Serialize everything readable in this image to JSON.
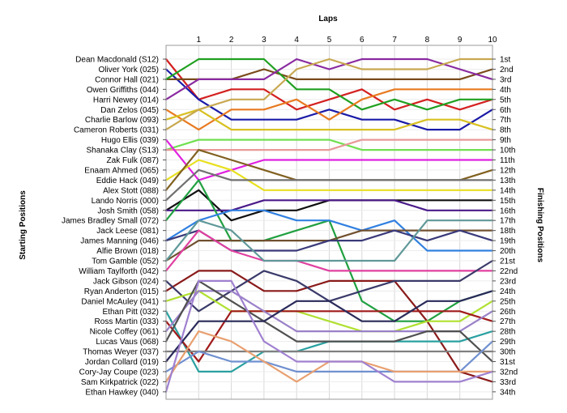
{
  "chart_data": {
    "type": "line",
    "title": "",
    "xlabel": "Laps",
    "ylabel_left": "Starting Positions",
    "ylabel_right": "Finishing Positions",
    "x": [
      0,
      1,
      2,
      3,
      4,
      5,
      6,
      7,
      8,
      9,
      10
    ],
    "x_tick_labels": [
      "1",
      "2",
      "3",
      "4",
      "5",
      "6",
      "7",
      "8",
      "9",
      "10"
    ],
    "y_axis": "position",
    "ylim": [
      1,
      34
    ],
    "grid": true,
    "finishing_labels": [
      "1st",
      "2nd",
      "3rd",
      "4th",
      "5th",
      "6th",
      "7th",
      "8th",
      "9th",
      "10th",
      "11th",
      "12th",
      "13th",
      "14th",
      "15th",
      "16th",
      "17th",
      "18th",
      "19th",
      "20th",
      "21st",
      "22nd",
      "23rd",
      "24th",
      "25th",
      "26th",
      "27th",
      "28th",
      "29th",
      "30th",
      "31st",
      "32nd",
      "33rd",
      "34th"
    ],
    "series": [
      {
        "name": "Dean Macdonald (S12)",
        "color": "#d42020",
        "values": [
          1,
          5,
          4,
          4,
          6,
          5,
          4,
          6,
          5,
          6,
          5
        ]
      },
      {
        "name": "Oliver York (025)",
        "color": "#1a1aa8",
        "values": [
          2,
          5,
          7,
          7,
          7,
          6,
          7,
          7,
          8,
          8,
          6
        ]
      },
      {
        "name": "Connor Hall (021)",
        "color": "#7a4a1a",
        "values": [
          3,
          3,
          3,
          2,
          3,
          3,
          3,
          3,
          3,
          3,
          2
        ]
      },
      {
        "name": "Owen Griffiths (044)",
        "color": "#20a020",
        "values": [
          3,
          1,
          1,
          1,
          4,
          4,
          6,
          5,
          6,
          5,
          5
        ]
      },
      {
        "name": "Harri Newey (014)",
        "color": "#8a2aa0",
        "values": [
          5,
          3,
          3,
          3,
          1,
          2,
          1,
          1,
          1,
          2,
          3
        ]
      },
      {
        "name": "Dan Zelos (045)",
        "color": "#e87a20",
        "values": [
          6,
          8,
          6,
          6,
          5,
          7,
          5,
          4,
          4,
          4,
          4
        ]
      },
      {
        "name": "Charlie Barlow (093)",
        "color": "#d8c020",
        "values": [
          7,
          6,
          8,
          8,
          8,
          8,
          8,
          8,
          7,
          7,
          8
        ]
      },
      {
        "name": "Cameron Roberts (031)",
        "color": "#c8a850",
        "values": [
          8,
          6,
          5,
          5,
          2,
          1,
          2,
          2,
          2,
          1,
          1
        ]
      },
      {
        "name": "Hugo Ellis (039)",
        "color": "#70e050",
        "values": [
          10,
          9,
          9,
          9,
          9,
          9,
          10,
          10,
          10,
          10,
          10
        ]
      },
      {
        "name": "Shanaka Clay (S13)",
        "color": "#e89898",
        "values": [
          10,
          10,
          10,
          10,
          10,
          10,
          9,
          9,
          9,
          9,
          9
        ]
      },
      {
        "name": "Zak Fulk (087)",
        "color": "#e020e0",
        "values": [
          9,
          13,
          12,
          11,
          11,
          11,
          11,
          11,
          11,
          11,
          11
        ]
      },
      {
        "name": "Enaam Ahmed (065)",
        "color": "#e8e020",
        "values": [
          13,
          11,
          12,
          14,
          14,
          14,
          14,
          14,
          14,
          14,
          14
        ]
      },
      {
        "name": "Eddie Hack (049)",
        "color": "#806020",
        "values": [
          14,
          10,
          11,
          12,
          13,
          13,
          13,
          13,
          13,
          13,
          12
        ]
      },
      {
        "name": "Alex Stott (088)",
        "color": "#707070",
        "values": [
          15,
          12,
          13,
          13,
          13,
          13,
          13,
          13,
          13,
          13,
          13
        ]
      },
      {
        "name": "Lando Norris (000)",
        "color": "#101010",
        "values": [
          16,
          14,
          17,
          16,
          16,
          15,
          15,
          15,
          15,
          15,
          15
        ]
      },
      {
        "name": "Josh Smith (058)",
        "color": "#4a1a8a",
        "values": [
          16,
          16,
          16,
          15,
          15,
          15,
          15,
          15,
          16,
          16,
          16
        ]
      },
      {
        "name": "James Bradley Small (072)",
        "color": "#20a040",
        "values": [
          17,
          13,
          19,
          19,
          18,
          17,
          25,
          27,
          27,
          25,
          24
        ]
      },
      {
        "name": "Jack Leese (081)",
        "color": "#3080e0",
        "values": [
          19,
          17,
          16,
          16,
          17,
          17,
          18,
          17,
          20,
          20,
          20
        ]
      },
      {
        "name": "James Manning (046)",
        "color": "#705030",
        "values": [
          21,
          19,
          19,
          19,
          19,
          19,
          18,
          18,
          18,
          18,
          18
        ]
      },
      {
        "name": "Alfie Brown (018)",
        "color": "#3a3a7a",
        "values": [
          19,
          18,
          20,
          20,
          20,
          19,
          19,
          18,
          19,
          18,
          19
        ]
      },
      {
        "name": "Tom Gamble (052)",
        "color": "#e040a0",
        "values": [
          22,
          18,
          20,
          21,
          21,
          22,
          22,
          22,
          22,
          22,
          22
        ]
      },
      {
        "name": "William Taylforth (042)",
        "color": "#609898",
        "values": [
          21,
          17,
          18,
          21,
          21,
          21,
          21,
          21,
          17,
          17,
          17
        ]
      },
      {
        "name": "Jack Gibson (024)",
        "color": "#8a1a1a",
        "values": [
          24,
          22,
          22,
          24,
          24,
          23,
          23,
          23,
          27,
          32,
          33
        ]
      },
      {
        "name": "Ryan Anderton (015)",
        "color": "#3a3a6a",
        "values": [
          23,
          26,
          24,
          22,
          23,
          25,
          24,
          23,
          23,
          23,
          21
        ]
      },
      {
        "name": "Daniel McAuley (041)",
        "color": "#b0e030",
        "values": [
          25,
          24,
          26,
          26,
          26,
          27,
          28,
          28,
          27,
          27,
          25
        ]
      },
      {
        "name": "Ethan Pitt (032)",
        "color": "#2aa0a0",
        "values": [
          26,
          32,
          32,
          30,
          30,
          29,
          29,
          29,
          29,
          29,
          28
        ]
      },
      {
        "name": "Ross Martin (033)",
        "color": "#a01a1a",
        "values": [
          27,
          31,
          26,
          26,
          26,
          26,
          26,
          26,
          26,
          26,
          27
        ]
      },
      {
        "name": "Nicole Coffey (061)",
        "color": "#9a80c8",
        "values": [
          28,
          24,
          24,
          26,
          28,
          28,
          28,
          28,
          28,
          28,
          26
        ]
      },
      {
        "name": "Lucas Vaus (068)",
        "color": "#505050",
        "values": [
          29,
          23,
          25,
          27,
          29,
          29,
          29,
          29,
          28,
          28,
          31
        ]
      },
      {
        "name": "Thomas Weyer (037)",
        "color": "#808080",
        "values": [
          30,
          30,
          30,
          30,
          30,
          30,
          30,
          30,
          30,
          30,
          30
        ]
      },
      {
        "name": "Jordan Collard (019)",
        "color": "#2a2a5a",
        "values": [
          31,
          27,
          27,
          27,
          25,
          25,
          27,
          27,
          25,
          25,
          24
        ]
      },
      {
        "name": "Cory-Jay Coupe (023)",
        "color": "#7090d0",
        "values": [
          32,
          30,
          31,
          31,
          32,
          32,
          32,
          32,
          32,
          32,
          29
        ]
      },
      {
        "name": "Sam Kirkpatrick (022)",
        "color": "#e8a070",
        "values": [
          33,
          28,
          29,
          31,
          33,
          31,
          31,
          32,
          32,
          32,
          32
        ]
      },
      {
        "name": "Ethan Hawkey (040)",
        "color": "#a080d0",
        "values": [
          34,
          23,
          23,
          29,
          31,
          31,
          31,
          33,
          33,
          33,
          32
        ]
      }
    ]
  }
}
